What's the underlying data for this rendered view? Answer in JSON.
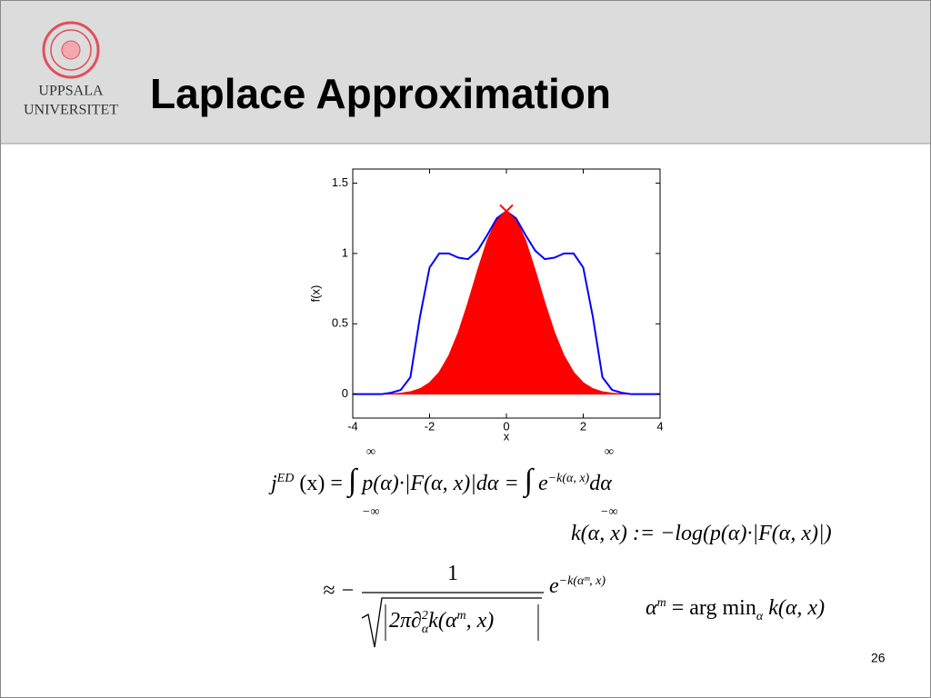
{
  "header": {
    "logo_line1": "UPPSALA",
    "logo_line2": "UNIVERSITET",
    "title": "Laplace Approximation"
  },
  "chart_data": {
    "type": "line",
    "xlabel": "x",
    "ylabel": "f(x)",
    "x": [
      -4,
      -3.75,
      -3.5,
      -3.25,
      -3,
      -2.75,
      -2.5,
      -2.25,
      -2,
      -1.75,
      -1.5,
      -1.25,
      -1,
      -0.75,
      -0.5,
      -0.25,
      0,
      0.25,
      0.5,
      0.75,
      1,
      1.25,
      1.5,
      1.75,
      2,
      2.25,
      2.5,
      2.75,
      3,
      3.25,
      3.5,
      3.75,
      4
    ],
    "series": [
      {
        "color": "#ff0000",
        "fill": true,
        "values": [
          0,
          0,
          0,
          0.001,
          0.002,
          0.007,
          0.017,
          0.039,
          0.082,
          0.156,
          0.274,
          0.441,
          0.651,
          0.881,
          1.093,
          1.245,
          1.3,
          1.245,
          1.093,
          0.881,
          0.651,
          0.441,
          0.274,
          0.156,
          0.082,
          0.039,
          0.017,
          0.007,
          0.002,
          0.001,
          0,
          0,
          0
        ]
      },
      {
        "color": "#0000ff",
        "values": [
          0,
          0,
          0,
          0,
          0.01,
          0.03,
          0.12,
          0.55,
          0.9,
          1.0,
          1.0,
          0.97,
          0.96,
          1.02,
          1.13,
          1.25,
          1.3,
          1.25,
          1.13,
          1.02,
          0.96,
          0.97,
          1.0,
          1.0,
          0.9,
          0.55,
          0.12,
          0.03,
          0.01,
          0,
          0,
          0,
          0
        ]
      }
    ],
    "peak": {
      "x": 0,
      "y": 1.3,
      "color": "#ff0000"
    },
    "xlim": [
      -4,
      4
    ],
    "ylim": [
      -0.17,
      1.6
    ],
    "xticks": [
      -4,
      -2,
      0,
      2,
      4
    ],
    "yticks": [
      0,
      0.5,
      1,
      1.5
    ]
  },
  "equations": {
    "integral": {
      "j": "j",
      "j_sup": "ED",
      "arg": "(x) =",
      "upper": "∞",
      "lower": "−∞",
      "integrand": "p(α)·|F(α, x)|dα =",
      "e": "e",
      "e_sup": "−k(α, x)",
      "tail": "dα"
    },
    "k_def": "k(α, x) := −log(p(α)·|F(α, x)|)",
    "approx": {
      "sign": "≈ −",
      "numerator": "1",
      "denominator": "2π∂",
      "d_sup": "2",
      "d_sub": "α",
      "denominator_tail": "k(α",
      "m": "m",
      "denominator_end": ", x)",
      "e": "e",
      "e_sup": "−k(αᵐ, x)"
    },
    "argmin": {
      "lhs": "α",
      "lhs_sup": "m",
      "rhs": "= arg min",
      "sub": "α",
      "tail": "k(α, x)"
    }
  },
  "page_number": "26"
}
